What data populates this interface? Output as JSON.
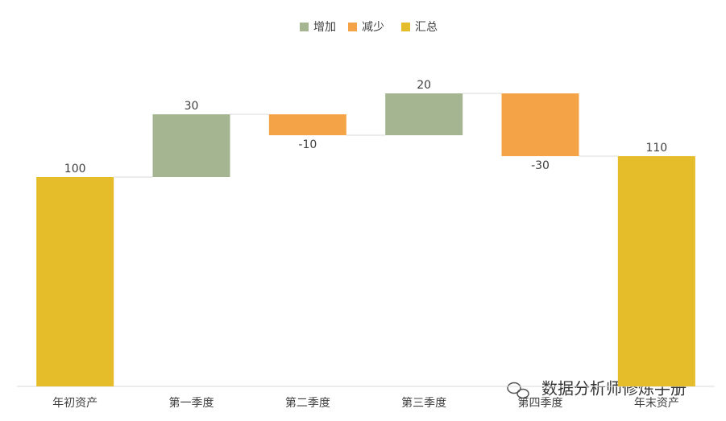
{
  "chart_data": {
    "type": "waterfall",
    "categories": [
      "年初资产",
      "第一季度",
      "第二季度",
      "第三季度",
      "第四季度",
      "年末资产"
    ],
    "values": [
      100,
      30,
      -10,
      20,
      -30,
      110
    ],
    "series": [
      {
        "name": "增加",
        "color": "#a5b592"
      },
      {
        "name": "减少",
        "color": "#f4a446"
      },
      {
        "name": "汇总",
        "color": "#e5bc2a"
      }
    ],
    "legend": "top"
  },
  "watermark": "数据分析师修炼手册"
}
